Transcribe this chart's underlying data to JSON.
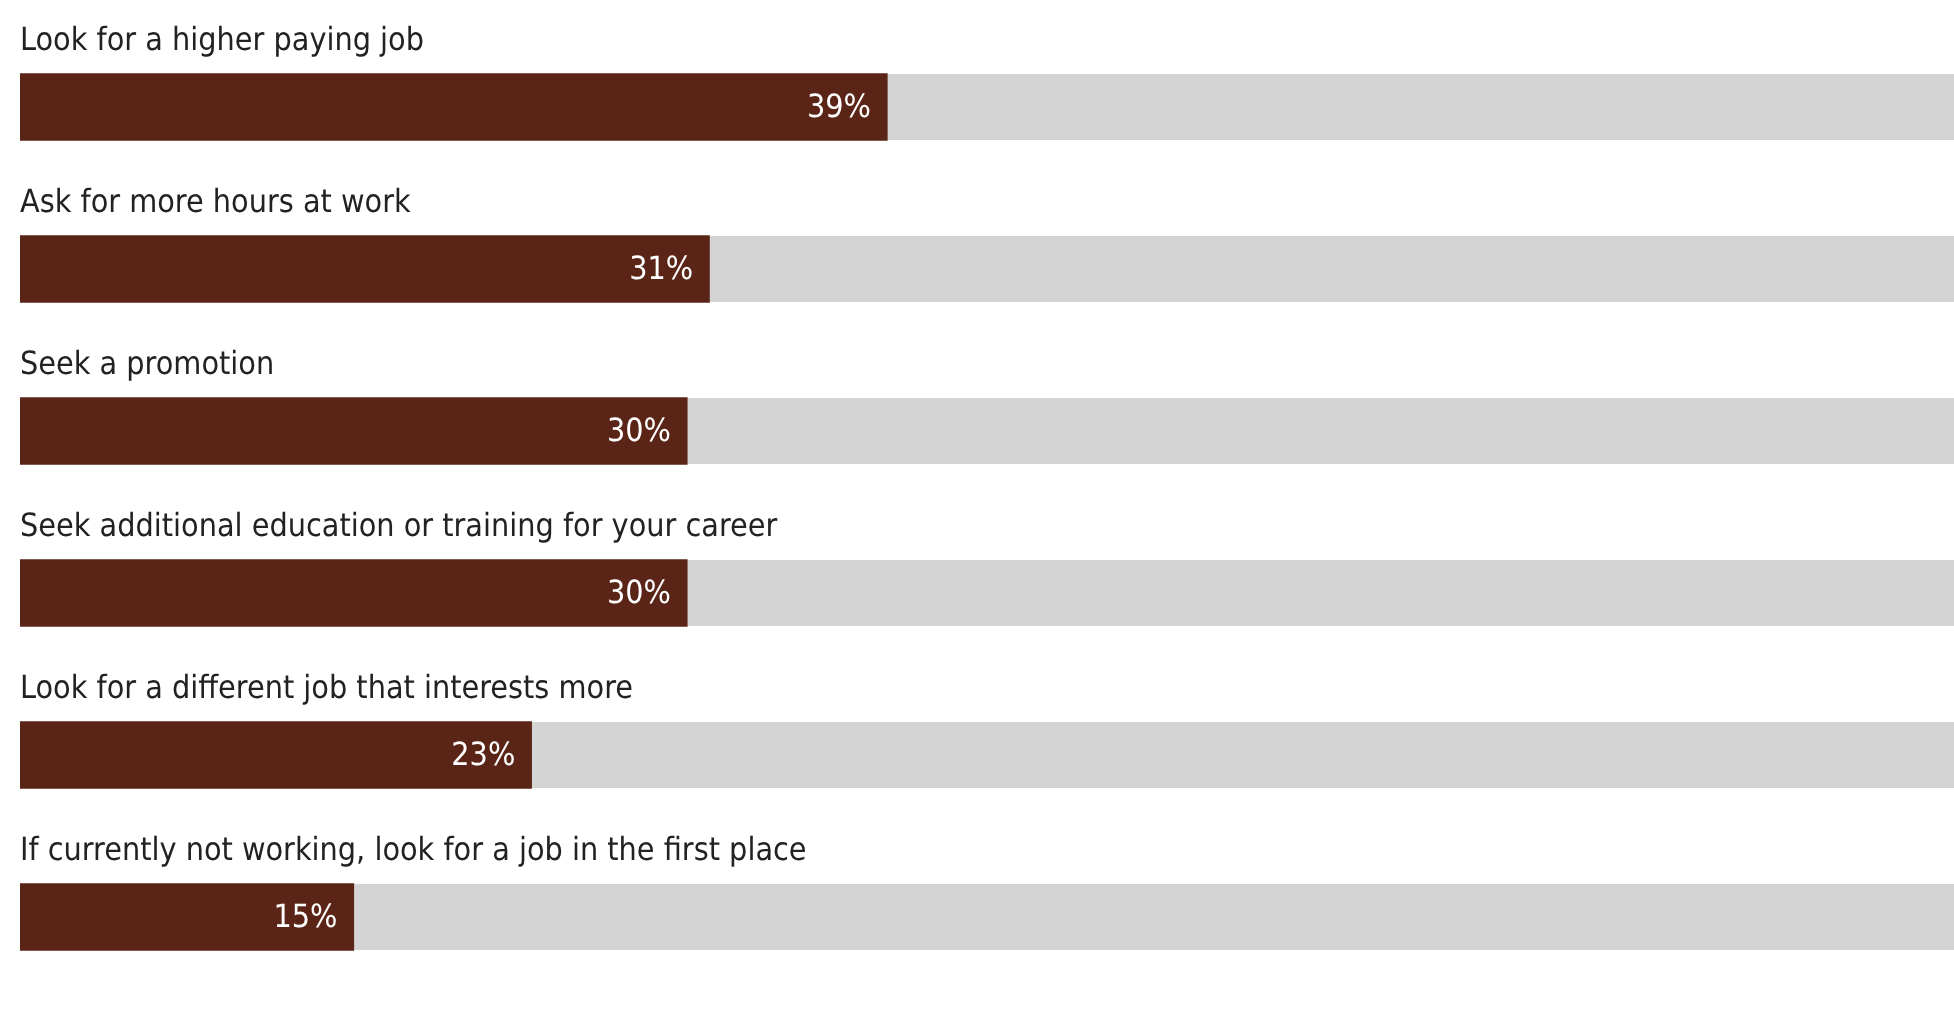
{
  "chart_data": {
    "type": "bar",
    "orientation": "horizontal",
    "categories": [
      "Look for a higher paying job",
      "Ask for more hours at work",
      "Seek a promotion",
      "Seek additional education or training for your career",
      "Look for a different job that interests more",
      "If currently not working, look for a job in the first place"
    ],
    "values": [
      39,
      31,
      30,
      30,
      23,
      15
    ],
    "value_labels": [
      "39%",
      "31%",
      "30%",
      "30%",
      "23%",
      "15%"
    ],
    "color": "#5a2416",
    "xlim": [
      0,
      87
    ],
    "tick_labels": "y"
  }
}
